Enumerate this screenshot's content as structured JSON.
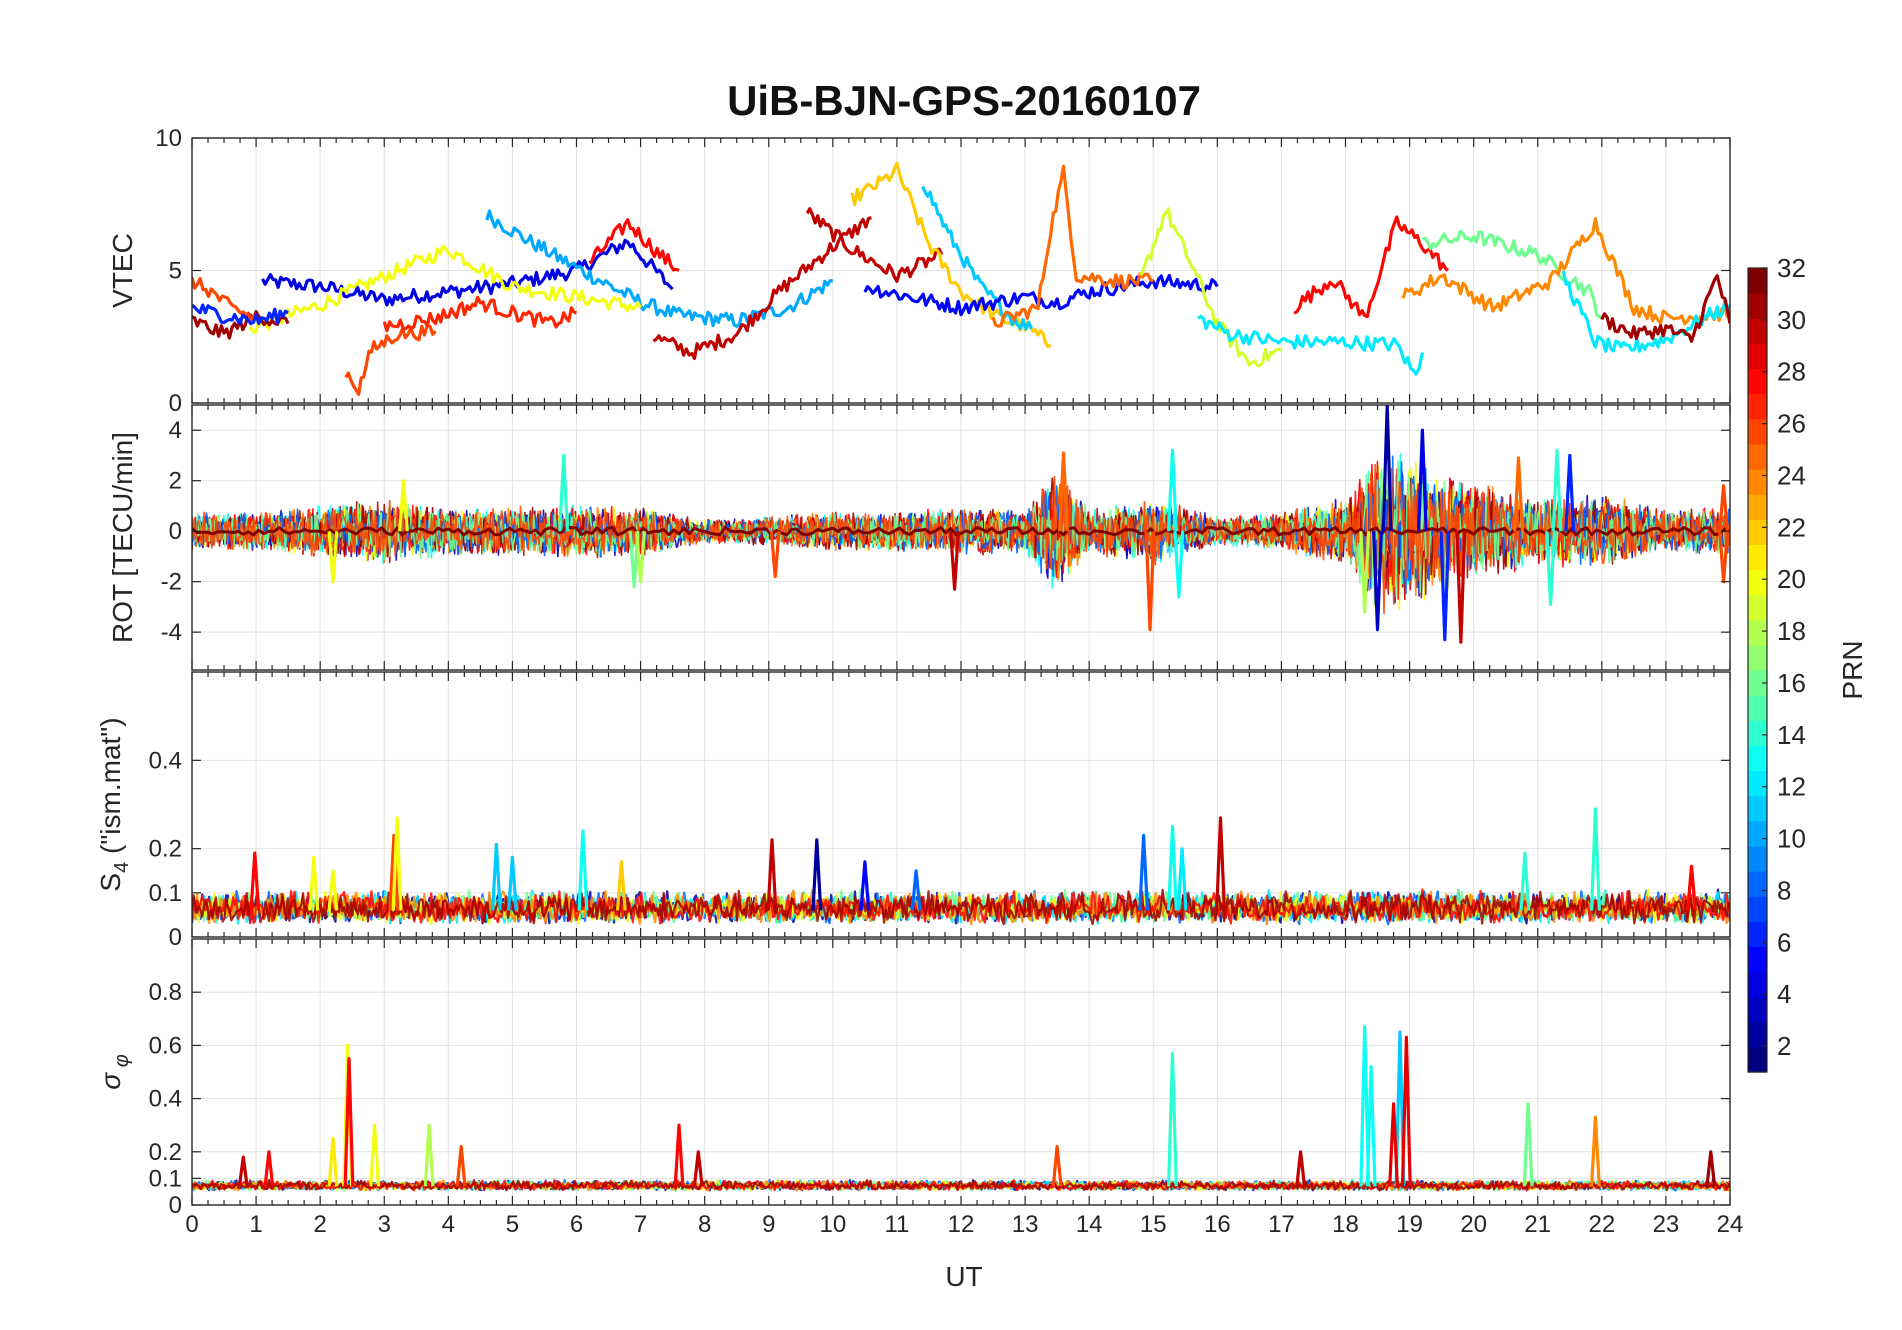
{
  "chart_data": {
    "type": "line",
    "title": "UiB-BJN-GPS-20160107",
    "xlabel": "UT",
    "xlim": [
      0,
      24
    ],
    "xticks": [
      0,
      1,
      2,
      3,
      4,
      5,
      6,
      7,
      8,
      9,
      10,
      11,
      12,
      13,
      14,
      15,
      16,
      17,
      18,
      19,
      20,
      21,
      22,
      23,
      24
    ],
    "grid": true,
    "panels": [
      {
        "id": "vtec",
        "ylabel": "VTEC",
        "ylim": [
          0,
          10
        ],
        "yticks": [
          {
            "v": 0,
            "t": "0"
          },
          {
            "v": 5,
            "t": "5"
          },
          {
            "v": 10,
            "t": "10"
          }
        ],
        "series": [
          {
            "prn": 4,
            "x": [
              1.1,
              2.0,
              3.0,
              4.0,
              5.0,
              6.0,
              6.8,
              7.5
            ],
            "y": [
              4.6,
              4.4,
              3.9,
              4.2,
              4.5,
              5.0,
              6.1,
              4.3
            ]
          },
          {
            "prn": 10,
            "x": [
              4.6,
              5.2,
              6.0,
              7.0,
              7.6,
              8.5,
              9.3,
              10.0
            ],
            "y": [
              7.1,
              6.2,
              5.1,
              3.8,
              3.3,
              3.1,
              3.6,
              4.6
            ]
          },
          {
            "prn": 20,
            "x": [
              0.9,
              2.0,
              3.4,
              4.0,
              5.0,
              6.0,
              7.0
            ],
            "y": [
              2.8,
              3.7,
              5.2,
              5.8,
              4.4,
              4.0,
              3.6
            ]
          },
          {
            "prn": 28,
            "x": [
              6.2,
              6.8,
              7.3,
              7.6
            ],
            "y": [
              5.3,
              6.8,
              5.6,
              5.0
            ]
          },
          {
            "prn": 30,
            "x": [
              7.2,
              7.8,
              8.5,
              9.2,
              10.0,
              10.6
            ],
            "y": [
              2.5,
              1.9,
              2.6,
              4.3,
              5.9,
              7.0
            ]
          },
          {
            "prn": 30,
            "x": [
              9.6,
              10.3,
              11.0,
              11.7
            ],
            "y": [
              7.2,
              5.8,
              4.8,
              5.6
            ]
          },
          {
            "prn": 22,
            "x": [
              10.3,
              10.8,
              11.0,
              11.5,
              12.0,
              12.6,
              13.0,
              13.4
            ],
            "y": [
              7.7,
              8.4,
              8.8,
              6.0,
              4.2,
              3.2,
              2.9,
              2.2
            ]
          },
          {
            "prn": 11,
            "x": [
              11.4,
              11.8,
              12.3,
              12.8,
              13.1
            ],
            "y": [
              8.4,
              6.4,
              4.4,
              3.2,
              2.8
            ]
          },
          {
            "prn": 5,
            "x": [
              10.5,
              11.2,
              12.0,
              13.0,
              13.5,
              14.0,
              15.0,
              16.0
            ],
            "y": [
              4.4,
              4.0,
              3.6,
              4.0,
              3.8,
              4.2,
              4.6,
              4.4
            ]
          },
          {
            "prn": 25,
            "x": [
              12.5,
              13.2,
              13.4,
              13.6,
              13.8,
              14.5,
              15.0
            ],
            "y": [
              3.0,
              3.6,
              6.6,
              8.7,
              4.8,
              4.6,
              4.6
            ]
          },
          {
            "prn": 19,
            "x": [
              14.8,
              15.2,
              15.4,
              15.6,
              16.0,
              16.5,
              17.0
            ],
            "y": [
              4.6,
              7.3,
              6.2,
              5.2,
              3.0,
              1.5,
              2.0
            ]
          },
          {
            "prn": 12,
            "x": [
              15.7,
              16.2,
              17.0,
              18.0,
              18.8,
              19.1,
              19.2
            ],
            "y": [
              3.2,
              2.6,
              2.3,
              2.3,
              2.2,
              1.0,
              1.9
            ]
          },
          {
            "prn": 28,
            "x": [
              17.2,
              17.8,
              18.3,
              18.8,
              19.2,
              19.6
            ],
            "y": [
              3.6,
              4.7,
              3.2,
              6.8,
              6.0,
              5.0
            ]
          },
          {
            "prn": 16,
            "x": [
              19.2,
              20.0,
              21.0,
              21.8,
              22.0
            ],
            "y": [
              6.0,
              6.3,
              5.6,
              4.2,
              3.2
            ]
          },
          {
            "prn": 24,
            "x": [
              18.9,
              19.5,
              20.3,
              21.2,
              21.9,
              22.5,
              23.0,
              24.0
            ],
            "y": [
              4.0,
              4.8,
              3.6,
              4.6,
              6.8,
              3.6,
              3.2,
              3.4
            ]
          },
          {
            "prn": 12,
            "x": [
              21.4,
              21.9,
              22.3,
              23.0,
              23.6,
              24.0
            ],
            "y": [
              4.8,
              2.3,
              2.0,
              2.4,
              3.2,
              3.7
            ]
          },
          {
            "prn": 31,
            "x": [
              22.0,
              22.5,
              23.0,
              23.4,
              23.8,
              24.0
            ],
            "y": [
              3.2,
              2.6,
              2.8,
              2.4,
              4.8,
              3.0
            ]
          },
          {
            "prn": 31,
            "x": [
              0.0,
              0.5,
              1.0,
              1.5
            ],
            "y": [
              3.1,
              2.6,
              3.3,
              3.0
            ]
          },
          {
            "prn": 26,
            "x": [
              0.0,
              0.3,
              0.6,
              1.0
            ],
            "y": [
              4.6,
              4.2,
              3.6,
              3.2
            ]
          },
          {
            "prn": 6,
            "x": [
              0.0,
              0.5,
              1.0,
              1.5
            ],
            "y": [
              3.6,
              3.3,
              3.1,
              3.4
            ]
          },
          {
            "prn": 26,
            "x": [
              2.4,
              2.6,
              2.8,
              3.2,
              3.8
            ],
            "y": [
              1.2,
              0.5,
              2.0,
              2.6,
              2.7
            ]
          },
          {
            "prn": 27,
            "x": [
              3.0,
              3.8,
              4.5,
              5.0,
              5.6,
              6.0
            ],
            "y": [
              2.9,
              3.2,
              3.8,
              3.4,
              3.0,
              3.4
            ]
          }
        ]
      },
      {
        "id": "rot",
        "ylabel": "ROT [TECU/min]",
        "ylim": [
          -5.5,
          5
        ],
        "yticks": [
          {
            "v": -4,
            "t": "-4"
          },
          {
            "v": -2,
            "t": "-2"
          },
          {
            "v": 0,
            "t": "0"
          },
          {
            "v": 2,
            "t": "2"
          },
          {
            "v": 4,
            "t": "4"
          }
        ],
        "envelope": {
          "x": [
            0,
            1,
            2,
            3,
            4,
            5,
            6,
            7,
            8,
            9,
            10,
            11,
            12,
            13,
            13.5,
            14,
            15,
            16,
            17,
            18,
            18.5,
            19,
            19.5,
            20,
            21,
            22,
            23,
            24
          ],
          "amp": [
            0.8,
            0.8,
            1.1,
            1.3,
            1.0,
            1.0,
            1.1,
            1.0,
            0.5,
            0.6,
            0.8,
            0.8,
            1.0,
            0.9,
            2.6,
            0.9,
            1.4,
            0.6,
            0.8,
            1.4,
            3.5,
            3.3,
            2.4,
            2.0,
            1.4,
            1.5,
            0.9,
            1.0
          ]
        },
        "spikes": [
          {
            "x": 5.8,
            "y": 3.0,
            "prn": 14
          },
          {
            "x": 9.1,
            "y": -1.8,
            "prn": 26
          },
          {
            "x": 11.9,
            "y": -2.3,
            "prn": 30
          },
          {
            "x": 13.6,
            "y": 3.1,
            "prn": 25
          },
          {
            "x": 14.95,
            "y": -3.9,
            "prn": 26
          },
          {
            "x": 15.3,
            "y": 3.2,
            "prn": 13
          },
          {
            "x": 15.4,
            "y": -2.6,
            "prn": 13
          },
          {
            "x": 18.65,
            "y": 5.0,
            "prn": 2
          },
          {
            "x": 19.2,
            "y": 4.0,
            "prn": 4
          },
          {
            "x": 18.5,
            "y": -3.9,
            "prn": 3
          },
          {
            "x": 19.55,
            "y": -4.3,
            "prn": 6
          },
          {
            "x": 19.8,
            "y": -4.4,
            "prn": 30
          },
          {
            "x": 18.3,
            "y": -3.2,
            "prn": 18
          },
          {
            "x": 20.7,
            "y": 2.9,
            "prn": 25
          },
          {
            "x": 21.2,
            "y": -2.9,
            "prn": 14
          },
          {
            "x": 21.5,
            "y": 3.0,
            "prn": 6
          },
          {
            "x": 21.3,
            "y": 3.2,
            "prn": 14
          },
          {
            "x": 23.9,
            "y": 1.8,
            "prn": 26
          },
          {
            "x": 23.9,
            "y": -2.0,
            "prn": 26
          },
          {
            "x": 2.2,
            "y": -2.0,
            "prn": 20
          },
          {
            "x": 6.9,
            "y": -2.2,
            "prn": 16
          },
          {
            "x": 7.0,
            "y": -2.0,
            "prn": 18
          },
          {
            "x": 3.3,
            "y": 2.0,
            "prn": 20
          }
        ]
      },
      {
        "id": "s4",
        "ylabel": "S4 (\"ism.mat\")",
        "ylim": [
          0,
          0.6
        ],
        "yticks": [
          {
            "v": 0,
            "t": "0"
          },
          {
            "v": 0.1,
            "t": "0.1"
          },
          {
            "v": 0.2,
            "t": "0.2"
          },
          {
            "v": 0.4,
            "t": "0.4"
          }
        ],
        "baseline": 0.06,
        "spikes": [
          {
            "x": 0.98,
            "y": 0.19,
            "prn": 28
          },
          {
            "x": 1.9,
            "y": 0.18,
            "prn": 20
          },
          {
            "x": 3.15,
            "y": 0.23,
            "prn": 26
          },
          {
            "x": 3.2,
            "y": 0.27,
            "prn": 20
          },
          {
            "x": 4.75,
            "y": 0.21,
            "prn": 11
          },
          {
            "x": 6.1,
            "y": 0.24,
            "prn": 13
          },
          {
            "x": 6.7,
            "y": 0.17,
            "prn": 22
          },
          {
            "x": 9.05,
            "y": 0.22,
            "prn": 30
          },
          {
            "x": 9.75,
            "y": 0.22,
            "prn": 2
          },
          {
            "x": 10.5,
            "y": 0.17,
            "prn": 5
          },
          {
            "x": 14.85,
            "y": 0.23,
            "prn": 8
          },
          {
            "x": 15.3,
            "y": 0.25,
            "prn": 13
          },
          {
            "x": 15.45,
            "y": 0.2,
            "prn": 12
          },
          {
            "x": 16.05,
            "y": 0.27,
            "prn": 30
          },
          {
            "x": 21.9,
            "y": 0.29,
            "prn": 14
          },
          {
            "x": 20.8,
            "y": 0.19,
            "prn": 14
          },
          {
            "x": 23.4,
            "y": 0.16,
            "prn": 28
          },
          {
            "x": 5.0,
            "y": 0.18,
            "prn": 11
          },
          {
            "x": 11.3,
            "y": 0.15,
            "prn": 8
          },
          {
            "x": 2.2,
            "y": 0.15,
            "prn": 20
          }
        ]
      },
      {
        "id": "sigphi",
        "ylabel": "σ φ",
        "ylim": [
          0,
          1
        ],
        "yticks": [
          {
            "v": 0,
            "t": "0"
          },
          {
            "v": 0.1,
            "t": "0.1"
          },
          {
            "v": 0.2,
            "t": "0.2"
          },
          {
            "v": 0.4,
            "t": "0.4"
          },
          {
            "v": 0.6,
            "t": "0.6"
          },
          {
            "v": 0.8,
            "t": "0.8"
          }
        ],
        "baseline": 0.07,
        "spikes": [
          {
            "x": 2.43,
            "y": 0.6,
            "prn": 20
          },
          {
            "x": 2.45,
            "y": 0.55,
            "prn": 28
          },
          {
            "x": 2.2,
            "y": 0.25,
            "prn": 21
          },
          {
            "x": 2.85,
            "y": 0.3,
            "prn": 20
          },
          {
            "x": 3.7,
            "y": 0.3,
            "prn": 18
          },
          {
            "x": 4.2,
            "y": 0.22,
            "prn": 26
          },
          {
            "x": 7.6,
            "y": 0.3,
            "prn": 28
          },
          {
            "x": 0.8,
            "y": 0.18,
            "prn": 30
          },
          {
            "x": 1.2,
            "y": 0.2,
            "prn": 28
          },
          {
            "x": 15.3,
            "y": 0.57,
            "prn": 14
          },
          {
            "x": 18.3,
            "y": 0.67,
            "prn": 13
          },
          {
            "x": 18.4,
            "y": 0.52,
            "prn": 13
          },
          {
            "x": 18.85,
            "y": 0.65,
            "prn": 11
          },
          {
            "x": 18.95,
            "y": 0.63,
            "prn": 29
          },
          {
            "x": 18.75,
            "y": 0.38,
            "prn": 29
          },
          {
            "x": 20.85,
            "y": 0.38,
            "prn": 16
          },
          {
            "x": 21.9,
            "y": 0.33,
            "prn": 24
          },
          {
            "x": 13.5,
            "y": 0.22,
            "prn": 26
          },
          {
            "x": 17.3,
            "y": 0.2,
            "prn": 30
          },
          {
            "x": 7.9,
            "y": 0.2,
            "prn": 30
          },
          {
            "x": 23.7,
            "y": 0.2,
            "prn": 31
          }
        ]
      }
    ],
    "colorbar": {
      "label": "PRN",
      "range": [
        1,
        32
      ],
      "ticks": [
        2,
        4,
        6,
        8,
        10,
        12,
        14,
        16,
        18,
        20,
        22,
        24,
        26,
        28,
        30,
        32
      ],
      "colormap": "jet",
      "colors": [
        "#000080",
        "#0000ff",
        "#00ffff",
        "#ffff00",
        "#ff0000",
        "#800000"
      ]
    }
  }
}
